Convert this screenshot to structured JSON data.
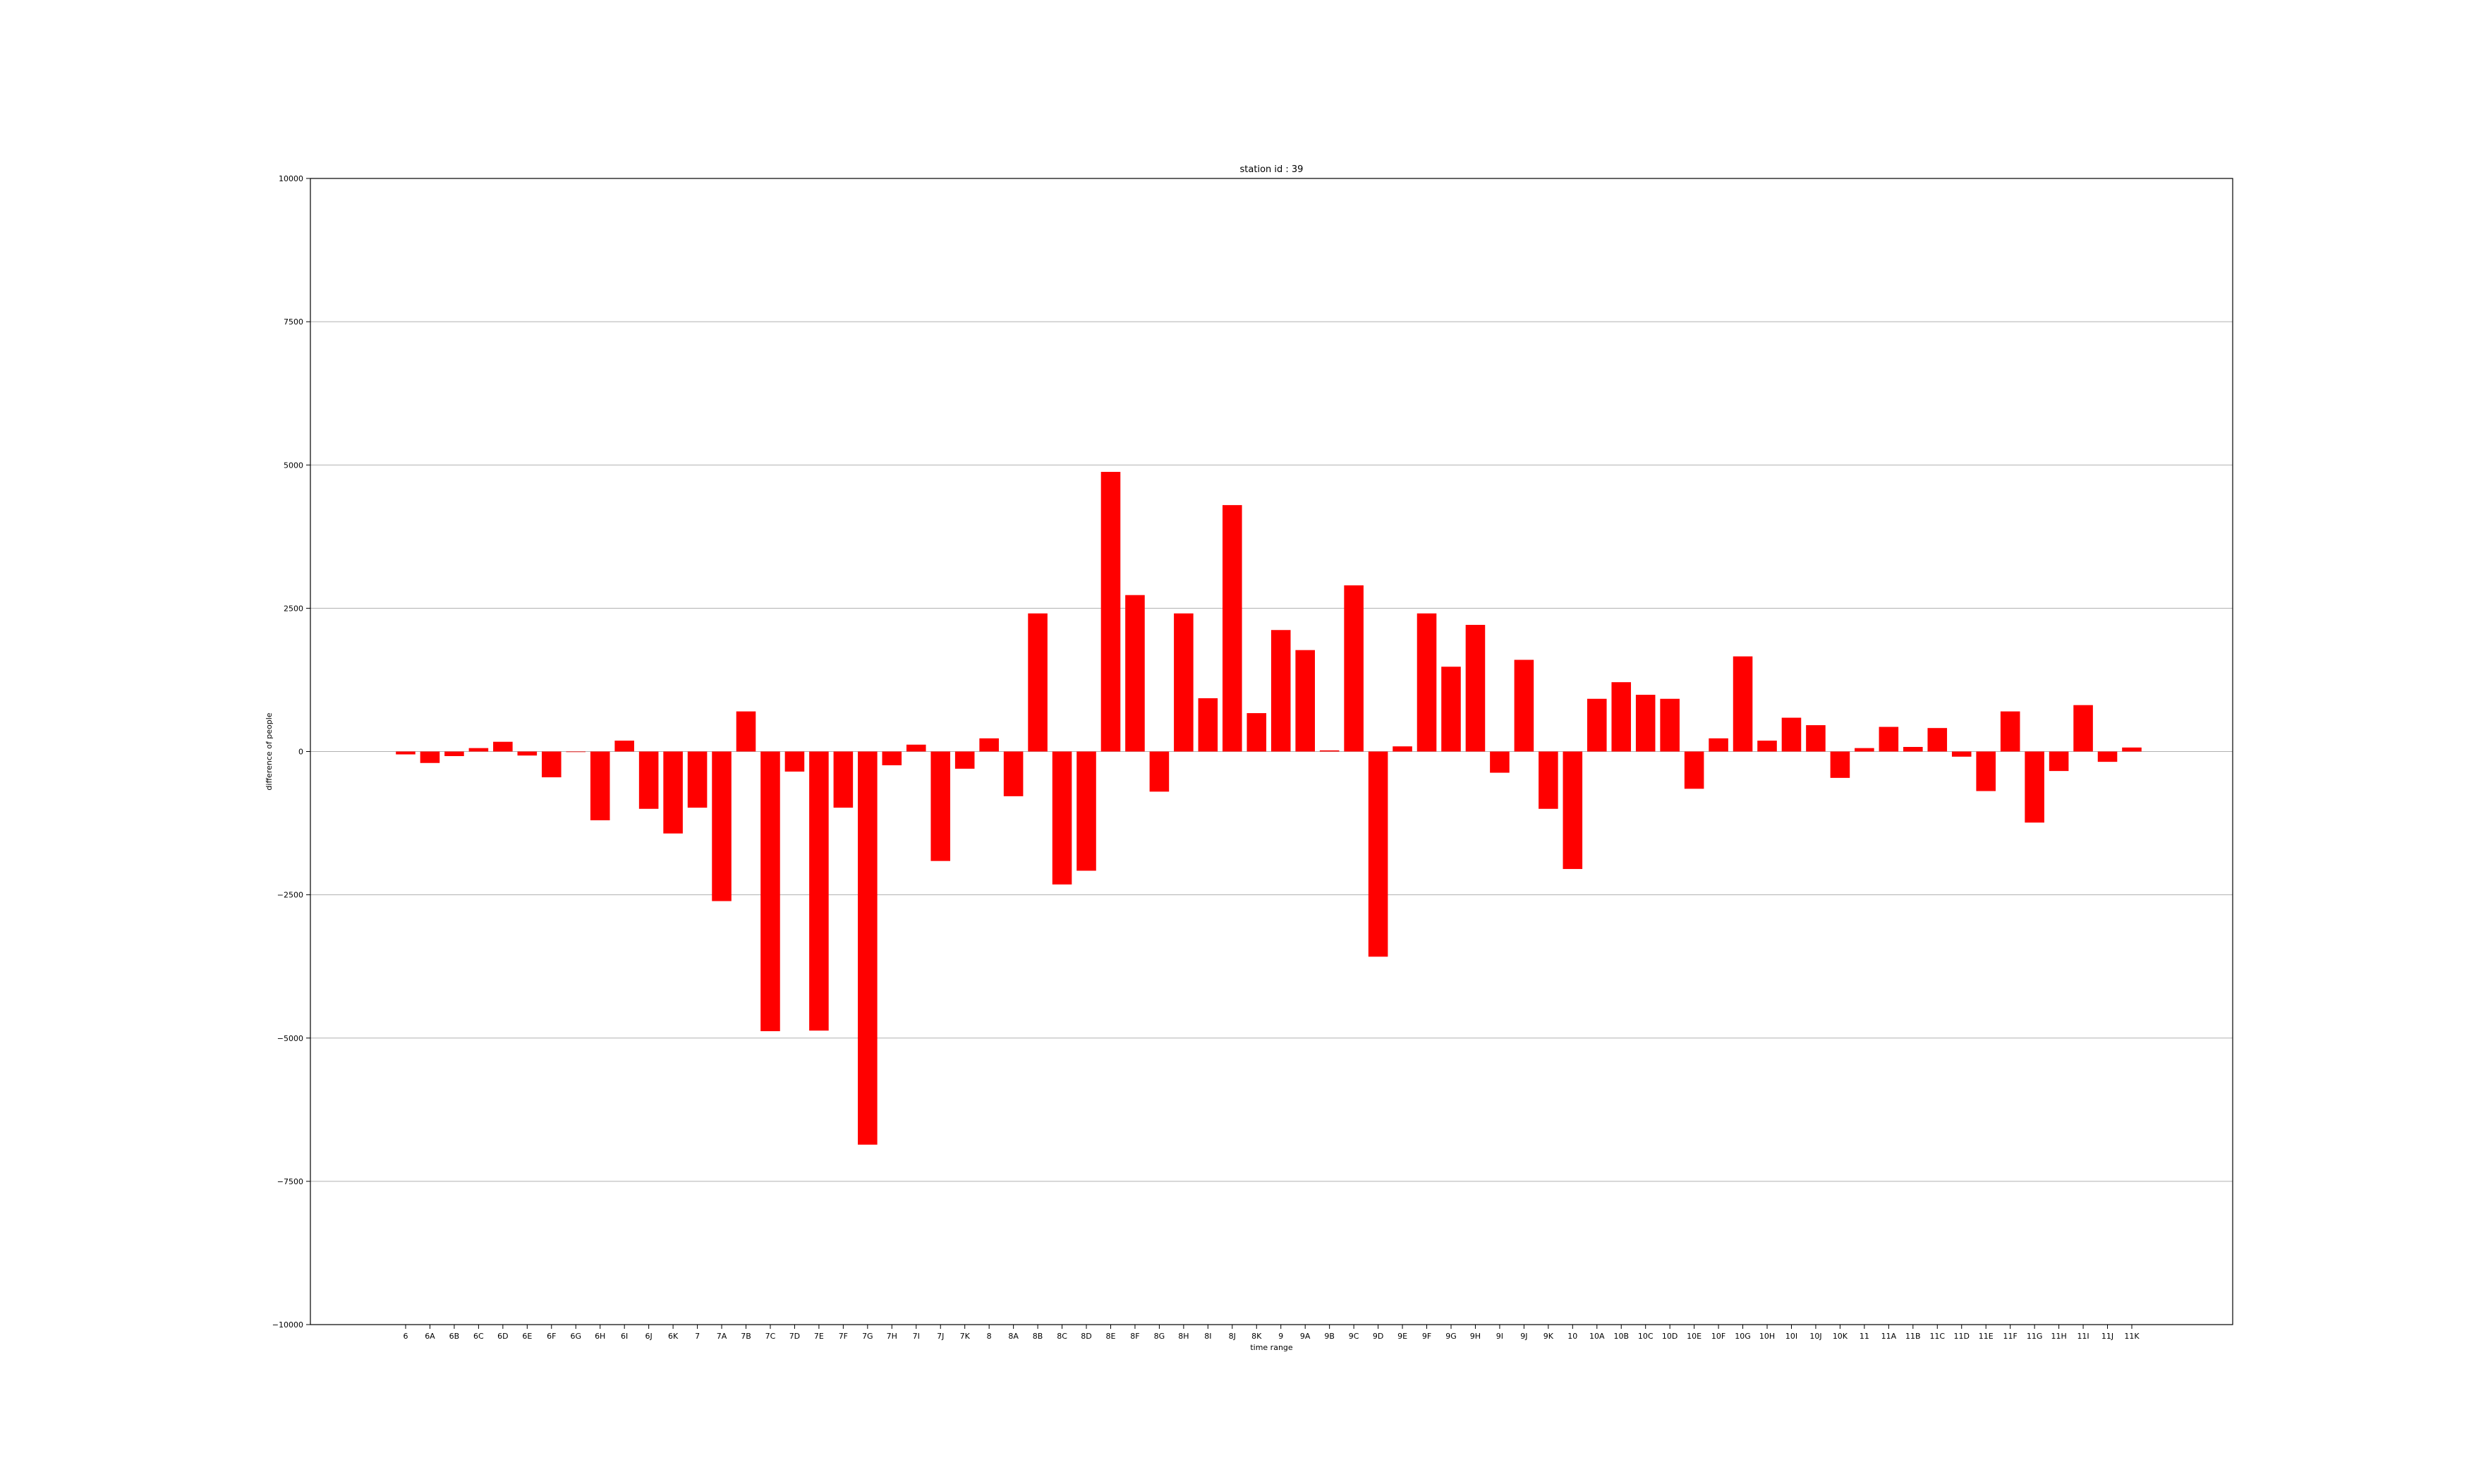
{
  "chart_data": {
    "type": "bar",
    "title": "station id : 39",
    "xlabel": "time range",
    "ylabel": "difference of people",
    "ylim": [
      -10000,
      10000
    ],
    "yticks": [
      -10000,
      -7500,
      -5000,
      -2500,
      0,
      2500,
      5000,
      7500,
      10000
    ],
    "ytick_labels": [
      "−10000",
      "−7500",
      "−5000",
      "−2500",
      "0",
      "2500",
      "5000",
      "7500",
      "10000"
    ],
    "grid": "horizontal",
    "bar_color": "#ff0000",
    "categories": [
      "6",
      "6A",
      "6B",
      "6C",
      "6D",
      "6E",
      "6F",
      "6G",
      "6H",
      "6I",
      "6J",
      "6K",
      "7",
      "7A",
      "7B",
      "7C",
      "7D",
      "7E",
      "7F",
      "7G",
      "7H",
      "7I",
      "7J",
      "7K",
      "8",
      "8A",
      "8B",
      "8C",
      "8D",
      "8E",
      "8F",
      "8G",
      "8H",
      "8I",
      "8J",
      "8K",
      "9",
      "9A",
      "9B",
      "9C",
      "9D",
      "9E",
      "9F",
      "9G",
      "9H",
      "9I",
      "9J",
      "9K",
      "10",
      "10A",
      "10B",
      "10C",
      "10D",
      "10E",
      "10F",
      "10G",
      "10H",
      "10I",
      "10J",
      "10K",
      "11",
      "11A",
      "11B",
      "11C",
      "11D",
      "11E",
      "11F",
      "11G",
      "11H",
      "11I",
      "11J",
      "11K"
    ],
    "values": [
      -50,
      -200,
      -80,
      60,
      170,
      -70,
      -450,
      0,
      -1200,
      190,
      -1000,
      -1430,
      -980,
      -2610,
      700,
      -4880,
      -350,
      -4870,
      -980,
      -6860,
      -240,
      120,
      -1910,
      -300,
      230,
      -780,
      2410,
      -2320,
      -2080,
      4880,
      2730,
      -700,
      2410,
      930,
      4300,
      670,
      2120,
      1770,
      20,
      2900,
      -3580,
      90,
      2410,
      1480,
      2210,
      -370,
      1600,
      -1000,
      -2050,
      920,
      1210,
      990,
      920,
      -650,
      230,
      1660,
      190,
      590,
      460,
      -460,
      60,
      430,
      80,
      410,
      -90,
      -690,
      700,
      -1240,
      -340,
      810,
      -180,
      70
    ]
  }
}
